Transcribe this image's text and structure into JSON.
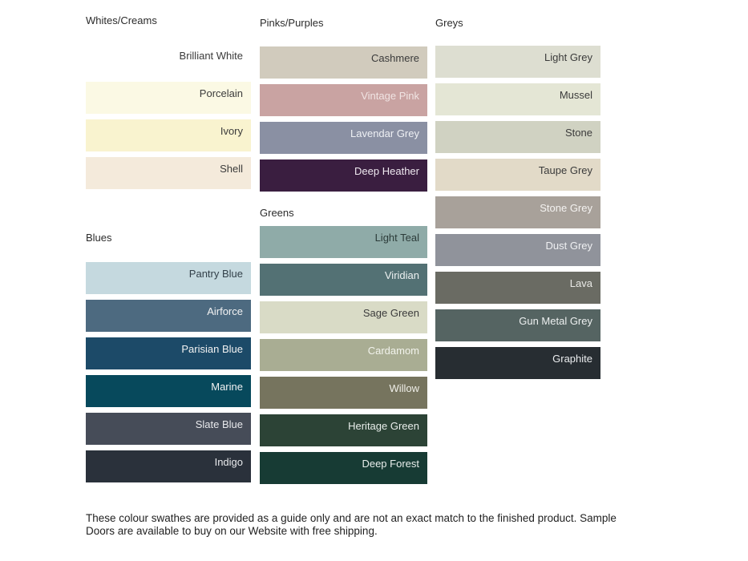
{
  "page": {
    "background": "#ffffff",
    "header_text_color": "#2b2b2b",
    "dark_label_color": "#3b3b3b",
    "light_label_color": "#f2f2f2"
  },
  "columns": [
    {
      "groups": [
        {
          "title": "Whites/Creams",
          "swatches": [
            {
              "name": "Brilliant White",
              "bg": "#ffffff",
              "text_color": "#3b3b3b"
            },
            {
              "name": "Porcelain",
              "bg": "#fbf9e4",
              "text_color": "#3b3b3b"
            },
            {
              "name": "Ivory",
              "bg": "#f9f3cf",
              "text_color": "#3b3b3b"
            },
            {
              "name": "Shell",
              "bg": "#f4eadb",
              "text_color": "#3b3b3b"
            }
          ]
        },
        {
          "title": "Blues",
          "swatches": [
            {
              "name": "Pantry Blue",
              "bg": "#c5d9df",
              "text_color": "#33414a"
            },
            {
              "name": "Airforce",
              "bg": "#4d6a80",
              "text_color": "#f2f2f2"
            },
            {
              "name": "Parisian Blue",
              "bg": "#1c4a68",
              "text_color": "#f2f2f2"
            },
            {
              "name": "Marine",
              "bg": "#07495c",
              "text_color": "#f2f2f2"
            },
            {
              "name": "Slate Blue",
              "bg": "#464c58",
              "text_color": "#e8e9ec"
            },
            {
              "name": "Indigo",
              "bg": "#2a313b",
              "text_color": "#e8e9ec"
            }
          ]
        }
      ]
    },
    {
      "groups": [
        {
          "title": "Pinks/Purples",
          "swatches": [
            {
              "name": "Cashmere",
              "bg": "#d1cbbd",
              "text_color": "#3b3b3b"
            },
            {
              "name": "Vintage Pink",
              "bg": "#c9a3a2",
              "text_color": "#f0e4e3"
            },
            {
              "name": "Lavendar Grey",
              "bg": "#8a90a3",
              "text_color": "#eef0f4"
            },
            {
              "name": "Deep Heather",
              "bg": "#3a1e40",
              "text_color": "#efe9f0"
            }
          ]
        },
        {
          "title": "Greens",
          "swatches": [
            {
              "name": "Light Teal",
              "bg": "#8faba8",
              "text_color": "#2c3b39"
            },
            {
              "name": "Viridian",
              "bg": "#537174",
              "text_color": "#eef2f2"
            },
            {
              "name": "Sage Green",
              "bg": "#d9dbc6",
              "text_color": "#3b3b3b"
            },
            {
              "name": "Cardamom",
              "bg": "#a9ad93",
              "text_color": "#f2f3ec"
            },
            {
              "name": "Willow",
              "bg": "#76745e",
              "text_color": "#f0efe9"
            },
            {
              "name": "Heritage Green",
              "bg": "#2c4336",
              "text_color": "#e9eeeb"
            },
            {
              "name": "Deep Forest",
              "bg": "#173b34",
              "text_color": "#e9eeec"
            }
          ]
        }
      ]
    },
    {
      "groups": [
        {
          "title": "Greys",
          "swatches": [
            {
              "name": "Light Grey",
              "bg": "#ddded1",
              "text_color": "#3b3b3b"
            },
            {
              "name": "Mussel",
              "bg": "#e4e6d5",
              "text_color": "#3b3b3b"
            },
            {
              "name": "Stone",
              "bg": "#d0d2c2",
              "text_color": "#3b3b3b"
            },
            {
              "name": "Taupe Grey",
              "bg": "#e2dac8",
              "text_color": "#3b3b3b"
            },
            {
              "name": "Stone Grey",
              "bg": "#a8a19a",
              "text_color": "#f4f2f0"
            },
            {
              "name": "Dust Grey",
              "bg": "#90939b",
              "text_color": "#eff0f2"
            },
            {
              "name": "Lava",
              "bg": "#6a6b63",
              "text_color": "#e9e9e6"
            },
            {
              "name": "Gun Metal Grey",
              "bg": "#556462",
              "text_color": "#edf0f0"
            },
            {
              "name": "Graphite",
              "bg": "#272d32",
              "text_color": "#eaecee"
            }
          ]
        }
      ]
    }
  ],
  "footer": {
    "line1": "These colour swathes are provided as a guide only and are not an exact match to the finished product.  Sample",
    "line2": "Doors are available to buy on our Website with free shipping."
  }
}
